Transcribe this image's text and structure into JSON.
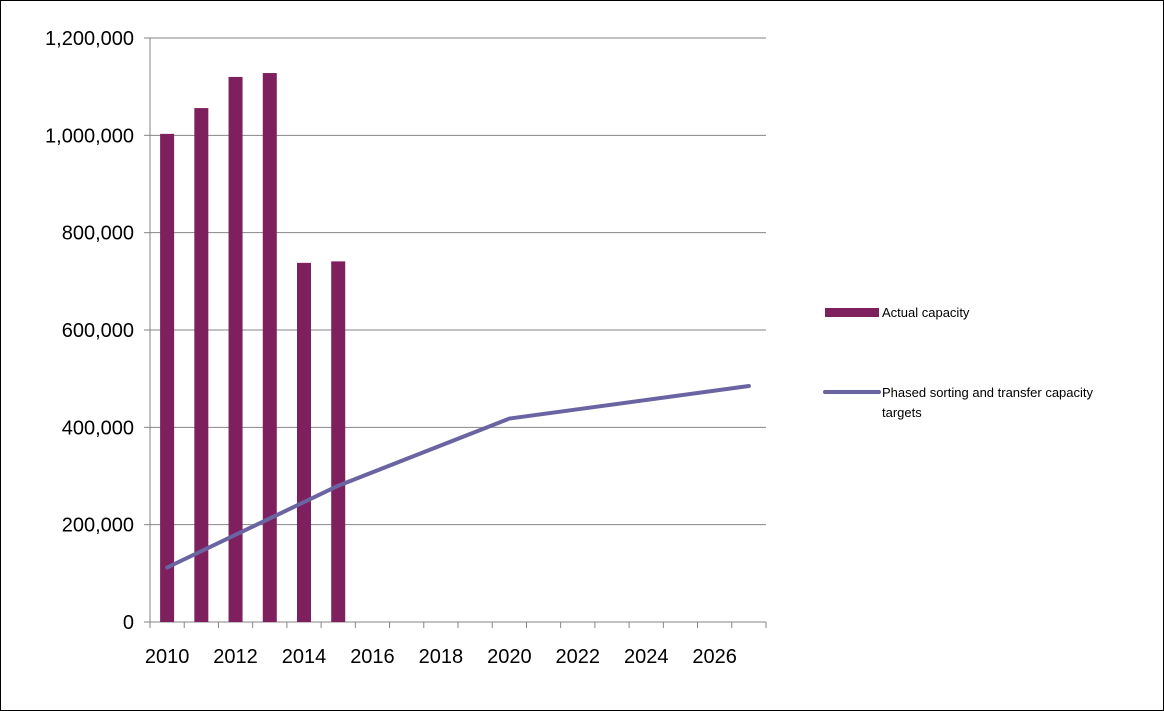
{
  "chart_data": {
    "type": "bar",
    "title": "",
    "xlabel": "",
    "ylabel": "",
    "xlim": [
      2009.5,
      2027.5
    ],
    "ylim": [
      0,
      1200000
    ],
    "x_ticks": [
      "2010",
      "2012",
      "2014",
      "2016",
      "2018",
      "2020",
      "2022",
      "2024",
      "2026"
    ],
    "y_ticks": [
      "0",
      "200,000",
      "400,000",
      "600,000",
      "800,000",
      "1,000,000",
      "1,200,000"
    ],
    "grid": "horizontal",
    "legend_position": "right",
    "series": [
      {
        "name": "Actual capacity",
        "type": "bar",
        "color": "#7E1F5E",
        "x": [
          2010,
          2011,
          2012,
          2013,
          2014,
          2015
        ],
        "values": [
          1003000,
          1056000,
          1120000,
          1128000,
          738000,
          741000
        ]
      },
      {
        "name": "Phased sorting and transfer capacity targets",
        "type": "line",
        "color": "#6A64A2",
        "x": [
          2010,
          2015,
          2020,
          2027
        ],
        "values": [
          112000,
          280000,
          418000,
          485000
        ]
      }
    ]
  }
}
